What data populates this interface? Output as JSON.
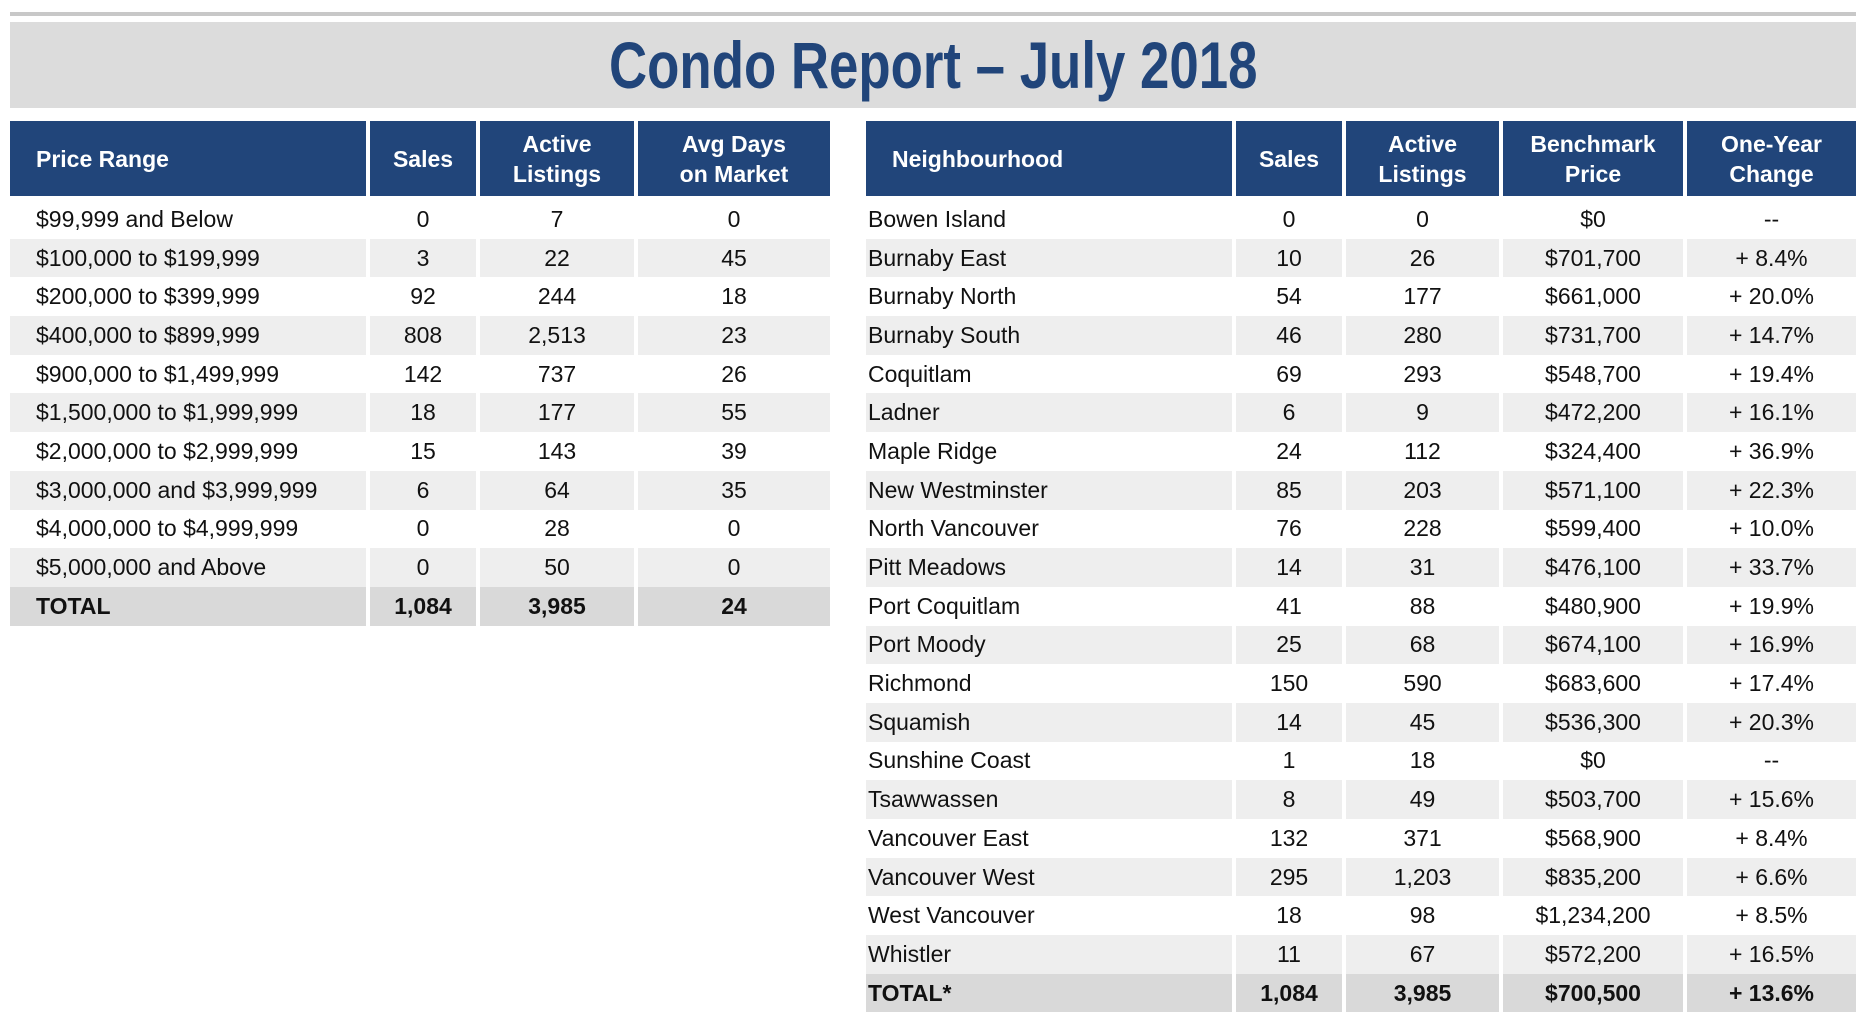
{
  "title": "Condo Report – July 2018",
  "price_table": {
    "headers": [
      "Price Range",
      "Sales",
      "Active\nListings",
      "Avg Days\non Market"
    ],
    "rows": [
      [
        "$99,999 and Below",
        "0",
        "7",
        "0"
      ],
      [
        "$100,000 to $199,999",
        "3",
        "22",
        "45"
      ],
      [
        "$200,000 to $399,999",
        "92",
        "244",
        "18"
      ],
      [
        "$400,000 to $899,999",
        "808",
        "2,513",
        "23"
      ],
      [
        "$900,000 to $1,499,999",
        "142",
        "737",
        "26"
      ],
      [
        "$1,500,000 to $1,999,999",
        "18",
        "177",
        "55"
      ],
      [
        "$2,000,000 to $2,999,999",
        "15",
        "143",
        "39"
      ],
      [
        "$3,000,000 and $3,999,999",
        "6",
        "64",
        "35"
      ],
      [
        "$4,000,000 to $4,999,999",
        "0",
        "28",
        "0"
      ],
      [
        "$5,000,000 and Above",
        "0",
        "50",
        "0"
      ]
    ],
    "total": [
      "TOTAL",
      "1,084",
      "3,985",
      "24"
    ]
  },
  "neighbourhood_table": {
    "headers": [
      "Neighbourhood",
      "Sales",
      "Active\nListings",
      "Benchmark\nPrice",
      "One-Year\nChange"
    ],
    "rows": [
      [
        "Bowen Island",
        "0",
        "0",
        "$0",
        "--"
      ],
      [
        "Burnaby East",
        "10",
        "26",
        "$701,700",
        "+ 8.4%"
      ],
      [
        "Burnaby North",
        "54",
        "177",
        "$661,000",
        "+ 20.0%"
      ],
      [
        "Burnaby South",
        "46",
        "280",
        "$731,700",
        "+ 14.7%"
      ],
      [
        "Coquitlam",
        "69",
        "293",
        "$548,700",
        "+ 19.4%"
      ],
      [
        "Ladner",
        "6",
        "9",
        "$472,200",
        "+ 16.1%"
      ],
      [
        "Maple Ridge",
        "24",
        "112",
        "$324,400",
        "+ 36.9%"
      ],
      [
        "New Westminster",
        "85",
        "203",
        "$571,100",
        "+ 22.3%"
      ],
      [
        "North Vancouver",
        "76",
        "228",
        "$599,400",
        "+ 10.0%"
      ],
      [
        "Pitt Meadows",
        "14",
        "31",
        "$476,100",
        "+ 33.7%"
      ],
      [
        "Port Coquitlam",
        "41",
        "88",
        "$480,900",
        "+ 19.9%"
      ],
      [
        "Port Moody",
        "25",
        "68",
        "$674,100",
        "+ 16.9%"
      ],
      [
        "Richmond",
        "150",
        "590",
        "$683,600",
        "+ 17.4%"
      ],
      [
        "Squamish",
        "14",
        "45",
        "$536,300",
        "+ 20.3%"
      ],
      [
        "Sunshine Coast",
        "1",
        "18",
        "$0",
        "--"
      ],
      [
        "Tsawwassen",
        "8",
        "49",
        "$503,700",
        "+ 15.6%"
      ],
      [
        "Vancouver East",
        "132",
        "371",
        "$568,900",
        "+ 8.4%"
      ],
      [
        "Vancouver West",
        "295",
        "1,203",
        "$835,200",
        "+ 6.6%"
      ],
      [
        "West Vancouver",
        "18",
        "98",
        "$1,234,200",
        "+ 8.5%"
      ],
      [
        "Whistler",
        "11",
        "67",
        "$572,200",
        "+ 16.5%"
      ]
    ],
    "total": [
      "TOTAL*",
      "1,084",
      "3,985",
      "$700,500",
      "+ 13.6%"
    ]
  }
}
